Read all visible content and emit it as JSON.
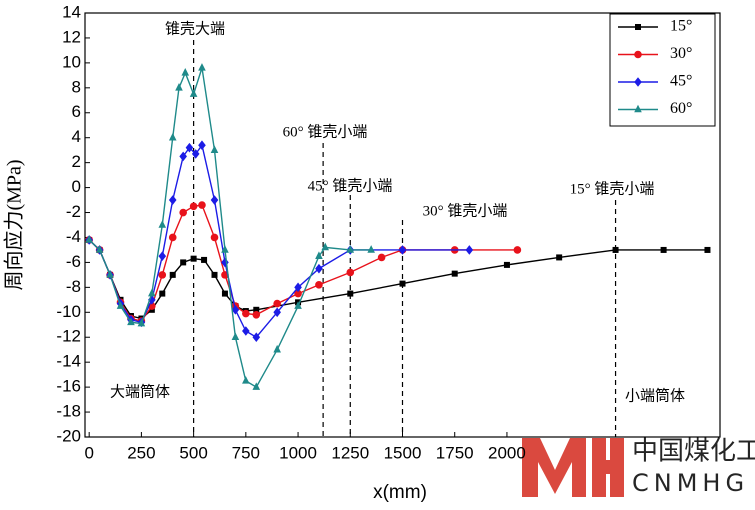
{
  "chart_data": {
    "type": "line",
    "x_label": "x(mm)",
    "y_label": "周向应力(MPa)",
    "xlim": [
      -20,
      3020
    ],
    "ylim": [
      -20,
      14
    ],
    "xticks": [
      0,
      250,
      500,
      750,
      1000,
      1250,
      1500,
      1750,
      2000
    ],
    "yticks": [
      -20,
      -18,
      -16,
      -14,
      -12,
      -10,
      -8,
      -6,
      -4,
      -2,
      0,
      2,
      4,
      6,
      8,
      10,
      12,
      14
    ],
    "legend": "top-right",
    "series": [
      {
        "name": "15°",
        "color": "#000000",
        "marker": "square",
        "x": [
          0,
          50,
          100,
          150,
          200,
          250,
          300,
          350,
          400,
          450,
          500,
          550,
          600,
          650,
          700,
          750,
          800,
          1000,
          1250,
          1500,
          1750,
          2000,
          2250,
          2520,
          2750,
          2960
        ],
        "y": [
          -4.2,
          -5,
          -7,
          -9,
          -10.3,
          -10.5,
          -9.8,
          -8.5,
          -7,
          -6,
          -5.7,
          -5.8,
          -7,
          -8.5,
          -9.5,
          -9.9,
          -9.8,
          -9.2,
          -8.5,
          -7.7,
          -6.9,
          -6.2,
          -5.6,
          -5,
          -5,
          -5
        ]
      },
      {
        "name": "30°",
        "color": "#e8121b",
        "marker": "circle",
        "x": [
          0,
          50,
          100,
          150,
          200,
          250,
          300,
          350,
          400,
          450,
          500,
          540,
          600,
          650,
          700,
          750,
          800,
          900,
          1000,
          1100,
          1250,
          1400,
          1500,
          1750,
          2050
        ],
        "y": [
          -4.2,
          -5,
          -7,
          -9.2,
          -10.5,
          -10.7,
          -9.5,
          -7,
          -4,
          -2,
          -1.5,
          -1.4,
          -4,
          -7,
          -9.5,
          -10.1,
          -10.2,
          -9.3,
          -8.5,
          -7.8,
          -6.8,
          -5.6,
          -5,
          -5,
          -5
        ]
      },
      {
        "name": "45°",
        "color": "#1c1ce6",
        "marker": "diamond",
        "x": [
          0,
          50,
          100,
          150,
          200,
          250,
          300,
          350,
          400,
          450,
          480,
          510,
          540,
          600,
          650,
          700,
          750,
          800,
          900,
          1000,
          1100,
          1250,
          1500,
          1820
        ],
        "y": [
          -4.2,
          -5,
          -7,
          -9.3,
          -10.6,
          -10.8,
          -9,
          -5.5,
          -1,
          2.5,
          3.2,
          2.7,
          3.4,
          -1,
          -6,
          -9.8,
          -11.5,
          -12,
          -10,
          -8,
          -6.5,
          -5,
          -5,
          -5
        ]
      },
      {
        "name": "60°",
        "color": "#1f8a8a",
        "marker": "triangle",
        "x": [
          0,
          50,
          100,
          150,
          200,
          250,
          300,
          350,
          400,
          430,
          460,
          500,
          540,
          600,
          650,
          700,
          750,
          800,
          900,
          1000,
          1100,
          1130,
          1250,
          1350
        ],
        "y": [
          -4.2,
          -5,
          -7,
          -9.5,
          -10.8,
          -10.9,
          -8.5,
          -3,
          4,
          8,
          9.2,
          7.5,
          9.6,
          3,
          -5,
          -12,
          -15.5,
          -16,
          -13,
          -9.5,
          -5.5,
          -4.8,
          -5,
          -5
        ]
      }
    ],
    "annotations": [
      {
        "x": 500,
        "label": "锥壳大端"
      },
      {
        "x": 1120,
        "label": "60° 锥壳小端"
      },
      {
        "x": 1250,
        "label": "45° 锥壳小端"
      },
      {
        "x": 1500,
        "label": "30° 锥壳小端"
      },
      {
        "x": 2520,
        "label": "15° 锥壳小端"
      }
    ],
    "texts": [
      "大端筒体",
      "小端筒体"
    ],
    "watermark": [
      "中国煤化工",
      "CNMHG"
    ]
  }
}
